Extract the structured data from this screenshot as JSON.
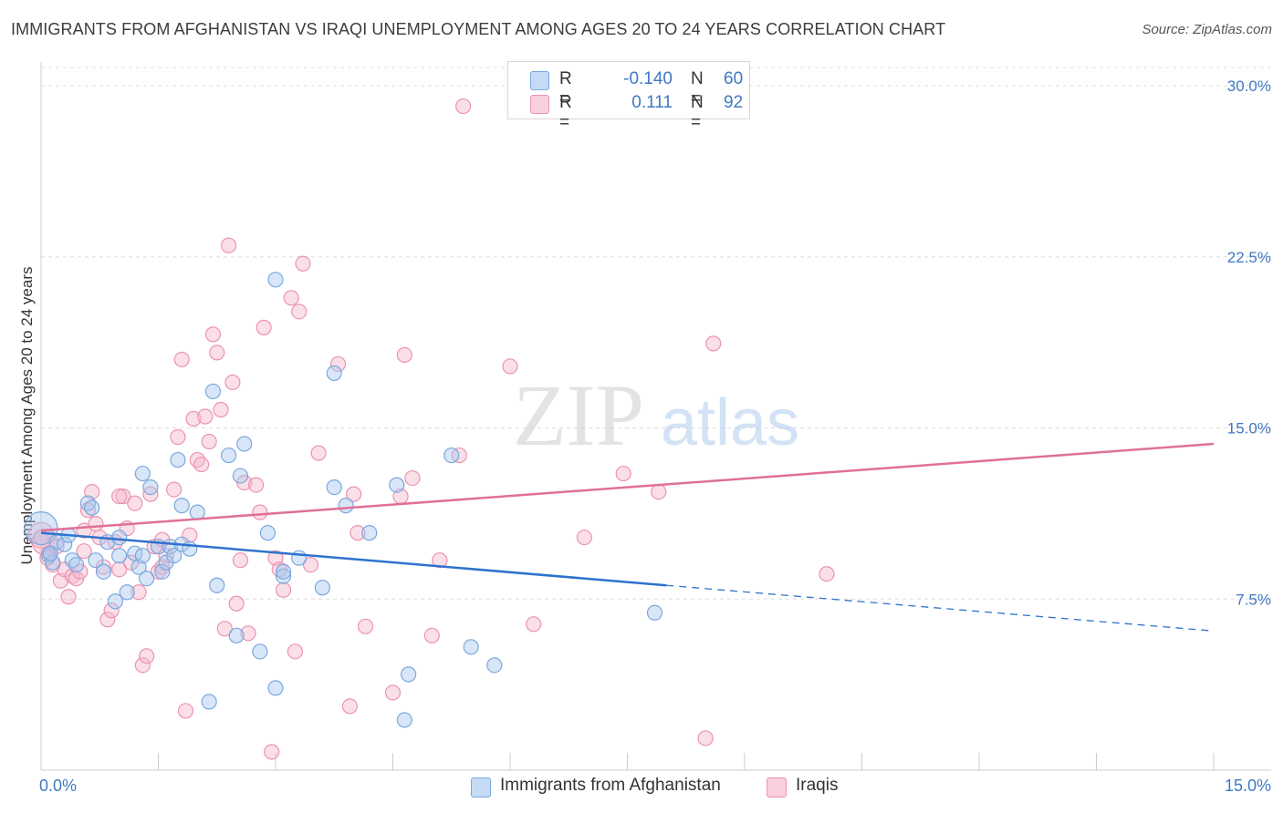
{
  "title": "IMMIGRANTS FROM AFGHANISTAN VS IRAQI UNEMPLOYMENT AMONG AGES 20 TO 24 YEARS CORRELATION CHART",
  "source": "Source: ZipAtlas.com",
  "watermark": {
    "zip": "ZIP",
    "atlas": "atlas"
  },
  "legend": {
    "rows": [
      {
        "r_label": "R =",
        "r_value": "-0.140",
        "n_label": "N =",
        "n_value": "60",
        "color": "#a8c8f0"
      },
      {
        "r_label": "R =",
        "r_value": "0.111",
        "n_label": "N =",
        "n_value": "92",
        "color": "#f5b8cb"
      }
    ]
  },
  "bottom_legend": {
    "afghanistan": "Immigrants from Afghanistan",
    "iraqis": "Iraqis"
  },
  "colors": {
    "blue_fill": "#a8c8f0",
    "blue_stroke": "#7aa8de",
    "blue_line": "#2f72cc",
    "pink_fill": "#f5b8cb",
    "pink_stroke": "#ec93b0",
    "pink_line": "#e0709a",
    "tick": "#3f78c4",
    "grid": "#dddddd"
  },
  "chart_data": {
    "type": "scatter",
    "title": "IMMIGRANTS FROM AFGHANISTAN VS IRAQI UNEMPLOYMENT AMONG AGES 20 TO 24 YEARS CORRELATION CHART",
    "xlabel": "",
    "ylabel": "Unemployment Among Ages 20 to 24 years",
    "xlim": [
      0,
      15
    ],
    "ylim": [
      0,
      30.8
    ],
    "x_tick_labels": [
      "0.0%",
      "15.0%"
    ],
    "y_ticks": [
      7.5,
      15.0,
      22.5,
      30.0
    ],
    "y_tick_labels": [
      "7.5%",
      "15.0%",
      "22.5%",
      "30.0%"
    ],
    "grid": "horizontal dashed",
    "legend_position": "top-center",
    "series": [
      {
        "name": "Immigrants from Afghanistan",
        "trend": {
          "x": [
            0,
            8.0
          ],
          "y": [
            10.4,
            8.1
          ],
          "dashed_to": [
            15,
            6.1
          ]
        },
        "points": [
          [
            0.0,
            10.6
          ],
          [
            0.1,
            9.4
          ],
          [
            0.15,
            9.1
          ],
          [
            0.2,
            10.0
          ],
          [
            0.3,
            9.9
          ],
          [
            0.35,
            10.3
          ],
          [
            0.4,
            9.2
          ],
          [
            0.45,
            9.0
          ],
          [
            0.6,
            11.7
          ],
          [
            0.65,
            11.5
          ],
          [
            0.7,
            9.2
          ],
          [
            0.8,
            8.7
          ],
          [
            0.85,
            10.0
          ],
          [
            0.95,
            7.4
          ],
          [
            1.0,
            9.4
          ],
          [
            1.0,
            10.2
          ],
          [
            1.1,
            7.8
          ],
          [
            1.2,
            9.5
          ],
          [
            1.25,
            8.9
          ],
          [
            1.3,
            9.4
          ],
          [
            1.3,
            13.0
          ],
          [
            1.35,
            8.4
          ],
          [
            1.4,
            12.4
          ],
          [
            1.5,
            9.8
          ],
          [
            1.55,
            8.7
          ],
          [
            1.6,
            9.1
          ],
          [
            1.65,
            9.8
          ],
          [
            1.7,
            9.4
          ],
          [
            1.75,
            13.6
          ],
          [
            1.8,
            11.6
          ],
          [
            1.8,
            9.9
          ],
          [
            1.9,
            9.7
          ],
          [
            2.0,
            11.3
          ],
          [
            2.15,
            3.0
          ],
          [
            2.2,
            16.6
          ],
          [
            2.25,
            8.1
          ],
          [
            2.4,
            13.8
          ],
          [
            2.5,
            5.9
          ],
          [
            2.55,
            12.9
          ],
          [
            2.6,
            14.3
          ],
          [
            2.8,
            5.2
          ],
          [
            2.9,
            10.4
          ],
          [
            3.0,
            21.5
          ],
          [
            3.0,
            3.6
          ],
          [
            3.1,
            8.5
          ],
          [
            3.1,
            8.7
          ],
          [
            3.3,
            9.3
          ],
          [
            3.6,
            8.0
          ],
          [
            3.75,
            17.4
          ],
          [
            3.75,
            12.4
          ],
          [
            3.9,
            11.6
          ],
          [
            4.2,
            10.4
          ],
          [
            4.55,
            12.5
          ],
          [
            4.65,
            2.2
          ],
          [
            4.7,
            4.2
          ],
          [
            5.25,
            13.8
          ],
          [
            5.5,
            5.4
          ],
          [
            5.8,
            4.6
          ],
          [
            7.85,
            6.9
          ],
          [
            0.12,
            9.5
          ]
        ]
      },
      {
        "name": "Iraqis",
        "trend": {
          "x": [
            0,
            15
          ],
          "y": [
            10.5,
            14.3
          ]
        },
        "points": [
          [
            0.0,
            10.3
          ],
          [
            0.05,
            10.0
          ],
          [
            0.1,
            9.5
          ],
          [
            0.15,
            9.0
          ],
          [
            0.2,
            9.8
          ],
          [
            0.25,
            8.3
          ],
          [
            0.3,
            8.8
          ],
          [
            0.35,
            7.6
          ],
          [
            0.4,
            8.5
          ],
          [
            0.45,
            8.4
          ],
          [
            0.5,
            8.7
          ],
          [
            0.55,
            9.6
          ],
          [
            0.6,
            11.4
          ],
          [
            0.65,
            12.2
          ],
          [
            0.7,
            10.8
          ],
          [
            0.75,
            10.2
          ],
          [
            0.8,
            8.9
          ],
          [
            0.85,
            6.6
          ],
          [
            0.9,
            7.0
          ],
          [
            0.95,
            10.0
          ],
          [
            1.0,
            8.8
          ],
          [
            1.05,
            12.0
          ],
          [
            1.1,
            10.6
          ],
          [
            1.15,
            9.1
          ],
          [
            1.2,
            11.7
          ],
          [
            1.25,
            7.8
          ],
          [
            1.3,
            4.6
          ],
          [
            1.35,
            5.0
          ],
          [
            1.4,
            12.1
          ],
          [
            1.45,
            9.8
          ],
          [
            1.5,
            8.7
          ],
          [
            1.55,
            10.1
          ],
          [
            1.6,
            9.4
          ],
          [
            1.7,
            12.3
          ],
          [
            1.75,
            14.6
          ],
          [
            1.8,
            18.0
          ],
          [
            1.85,
            2.6
          ],
          [
            1.9,
            10.3
          ],
          [
            1.95,
            15.4
          ],
          [
            2.0,
            13.6
          ],
          [
            2.05,
            13.4
          ],
          [
            2.1,
            15.5
          ],
          [
            2.15,
            14.4
          ],
          [
            2.2,
            19.1
          ],
          [
            2.25,
            18.3
          ],
          [
            2.3,
            15.8
          ],
          [
            2.35,
            6.2
          ],
          [
            2.4,
            23.0
          ],
          [
            2.45,
            17.0
          ],
          [
            2.5,
            7.3
          ],
          [
            2.55,
            9.2
          ],
          [
            2.6,
            12.6
          ],
          [
            2.65,
            6.0
          ],
          [
            2.75,
            12.5
          ],
          [
            2.8,
            11.3
          ],
          [
            2.85,
            19.4
          ],
          [
            2.95,
            0.8
          ],
          [
            3.0,
            9.3
          ],
          [
            3.05,
            8.8
          ],
          [
            3.1,
            7.9
          ],
          [
            3.2,
            20.7
          ],
          [
            3.25,
            5.2
          ],
          [
            3.3,
            20.1
          ],
          [
            3.35,
            22.2
          ],
          [
            3.45,
            9.0
          ],
          [
            3.55,
            13.9
          ],
          [
            3.8,
            17.8
          ],
          [
            3.95,
            2.8
          ],
          [
            4.0,
            12.1
          ],
          [
            4.05,
            10.4
          ],
          [
            4.15,
            6.3
          ],
          [
            4.5,
            3.4
          ],
          [
            4.6,
            12.0
          ],
          [
            4.65,
            18.2
          ],
          [
            4.75,
            12.8
          ],
          [
            5.0,
            5.9
          ],
          [
            5.1,
            9.2
          ],
          [
            5.4,
            29.1
          ],
          [
            5.35,
            13.8
          ],
          [
            6.0,
            17.7
          ],
          [
            6.3,
            6.4
          ],
          [
            6.95,
            10.2
          ],
          [
            7.45,
            13.0
          ],
          [
            7.9,
            12.2
          ],
          [
            8.5,
            1.4
          ],
          [
            8.6,
            18.7
          ],
          [
            10.05,
            8.6
          ],
          [
            0.0,
            10.2
          ],
          [
            0.08,
            9.3
          ],
          [
            0.55,
            10.5
          ],
          [
            1.0,
            12.0
          ],
          [
            1.55,
            8.9
          ]
        ]
      }
    ]
  }
}
